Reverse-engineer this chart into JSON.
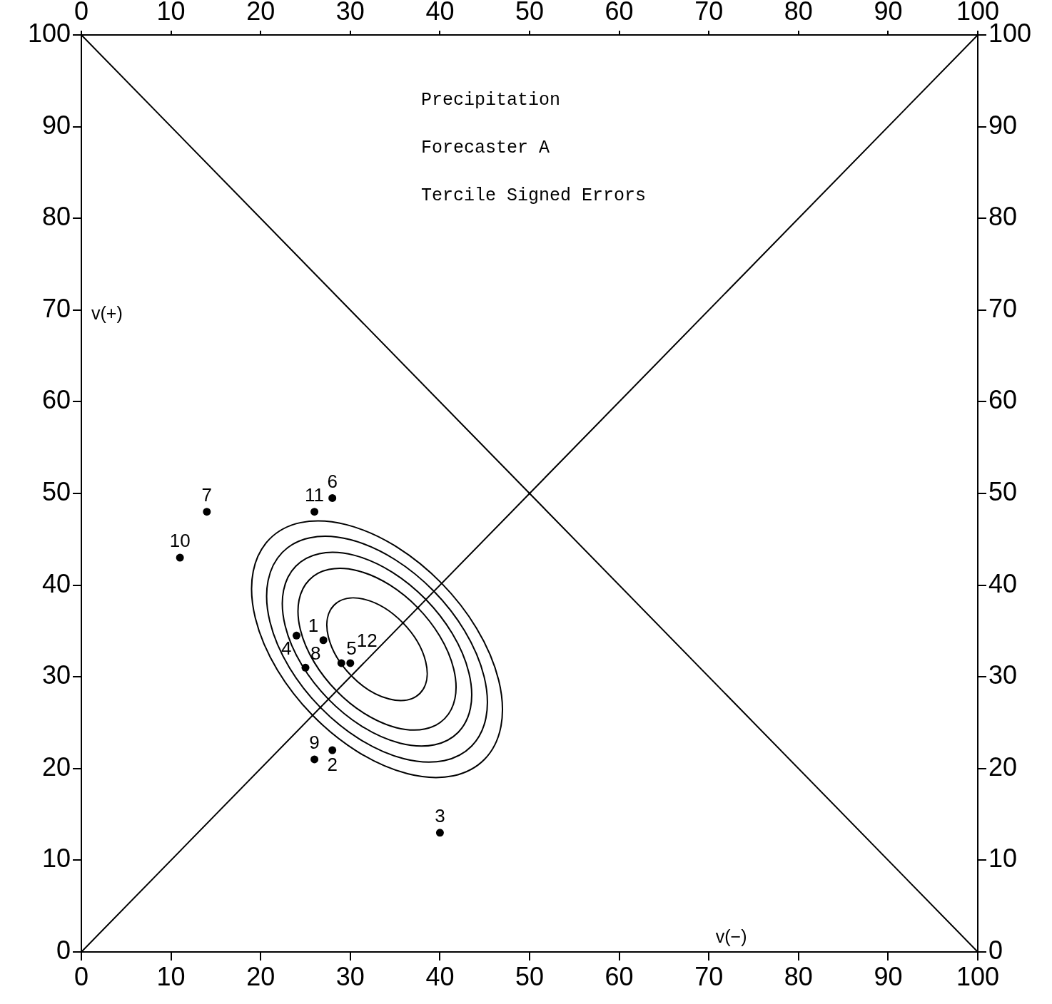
{
  "chart_data": {
    "type": "scatter",
    "xlabel": "v(−)",
    "ylabel": "v(+)",
    "annotations": [
      "Precipitation",
      "Forecaster A",
      "Tercile Signed Errors",
      {
        "text": "1",
        "x": 27,
        "y": 34
      },
      {
        "text": "2",
        "x": 28,
        "y": 22
      },
      {
        "text": "3",
        "x": 40,
        "y": 13
      },
      {
        "text": "4",
        "x": 24,
        "y": 34.5
      },
      {
        "text": "5",
        "x": 29,
        "y": 31.5
      },
      {
        "text": "6",
        "x": 28,
        "y": 49.5
      },
      {
        "text": "7",
        "x": 14,
        "y": 48
      },
      {
        "text": "8",
        "x": 25,
        "y": 31
      },
      {
        "text": "9",
        "x": 26,
        "y": 21
      },
      {
        "text": "10",
        "x": 11,
        "y": 43
      },
      {
        "text": "11",
        "x": 26,
        "y": 48
      },
      {
        "text": "12",
        "x": 30,
        "y": 31.5
      }
    ],
    "xlim": [
      0,
      100
    ],
    "xticks": [
      0,
      10,
      20,
      30,
      40,
      50,
      60,
      70,
      80,
      90,
      100
    ],
    "x2lim": [
      0,
      100
    ],
    "x2ticks": [
      0,
      10,
      20,
      30,
      40,
      50,
      60,
      70,
      80,
      90,
      100
    ],
    "ylim": [
      0,
      100
    ],
    "yticks": [
      0,
      10,
      20,
      30,
      40,
      50,
      60,
      70,
      80,
      90,
      100
    ],
    "y2lim": [
      0,
      100
    ],
    "y2ticks": [
      0,
      10,
      20,
      30,
      40,
      50,
      60,
      70,
      80,
      90,
      100
    ],
    "marker": "circle",
    "series": [
      {
        "type": "line",
        "marker": "none",
        "color": "#000000",
        "x": [
          0,
          100
        ],
        "values": [
          0,
          100
        ]
      },
      {
        "type": "line",
        "marker": "none",
        "color": "#000000",
        "x": [
          0,
          100
        ],
        "values": [
          100,
          0
        ]
      },
      {
        "color": "#000000",
        "x": [
          27,
          28,
          40,
          24,
          29,
          28,
          14,
          25,
          26,
          11,
          26,
          30
        ],
        "values": [
          34,
          22,
          13,
          34.5,
          31.5,
          49.5,
          48,
          31,
          21,
          43,
          48,
          31.5
        ]
      }
    ]
  }
}
